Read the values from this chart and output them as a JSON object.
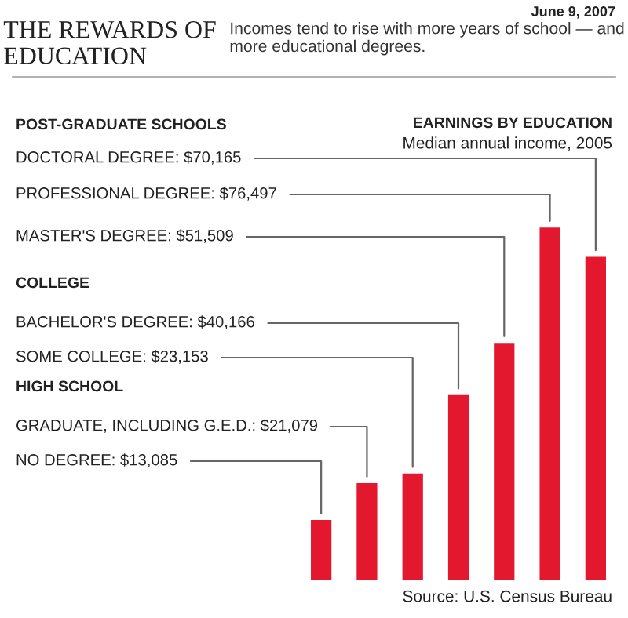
{
  "chart_data": {
    "type": "bar",
    "title": "THE REWARDS OF EDUCATION",
    "subtitle": "Incomes tend to rise with more years of school — and more educational degrees.",
    "categories": [
      null,
      null,
      null,
      null,
      null,
      null,
      null
    ],
    "values": [
      13085,
      21079,
      23153,
      40166,
      51509,
      76497,
      70165
    ],
    "value_labels": [
      "NO DEGREE: $13,085",
      "GRADUATE, INCLUDING G.E.D.: $21,079",
      "SOME COLLEGE: $23,153",
      "BACHELOR'S DEGREE: $40,166",
      "MASTER'S DEGREE: $51,509",
      "PROFESSIONAL DEGREE: $76,497",
      "DOCTORAL DEGREE: $70,165"
    ],
    "color": "#e3172d",
    "annotations": [
      "June 9, 2007",
      "EARNINGS BY EDUCATION",
      "Median annual income, 2005",
      "POST-GRADUATE SCHOOLS",
      "COLLEGE",
      "HIGH SCHOOL",
      "Source: U.S. Census Bureau"
    ]
  }
}
